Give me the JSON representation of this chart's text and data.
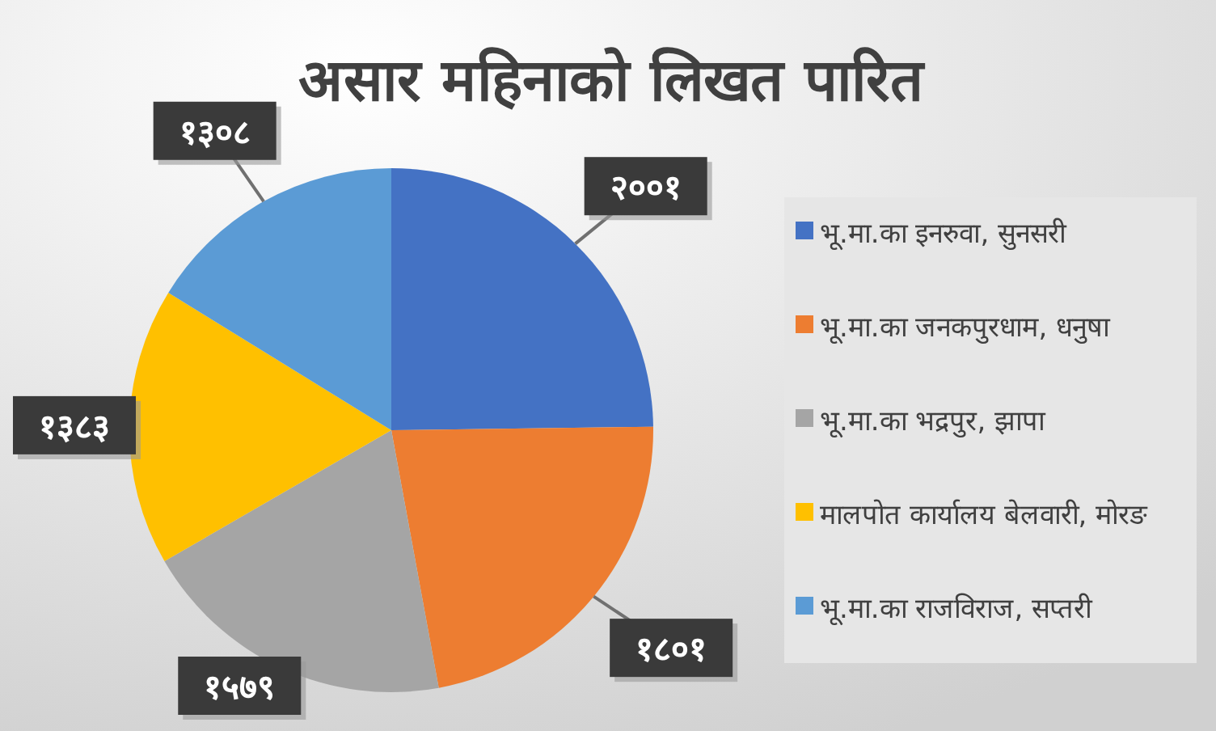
{
  "chart_data": {
    "type": "pie",
    "title": "असार महिनाको लिखत पारित",
    "categories": [
      "भू.मा.का इनरुवा, सुनसरी",
      "भू.मा.का जनकपुरधाम, धनुषा",
      "भू.मा.का भद्रपुर, झापा",
      "मालपोत कार्यालय बेलवारी, मोरङ",
      "भू.मा.का राजविराज, सप्तरी"
    ],
    "values": [
      2001,
      1801,
      1579,
      1383,
      1308
    ],
    "value_labels": [
      "२००१",
      "१८०१",
      "१५७९",
      "१३८३",
      "१३०८"
    ],
    "colors": [
      "#4472c4",
      "#ed7d31",
      "#a5a5a5",
      "#ffc000",
      "#5b9bd5"
    ],
    "legend": "right"
  }
}
